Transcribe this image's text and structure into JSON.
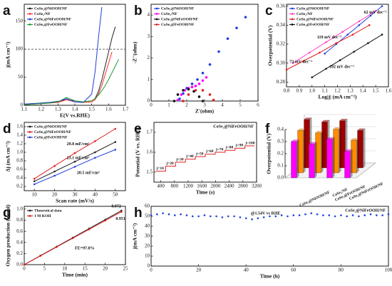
{
  "chart_data": [
    {
      "type": "line",
      "label": "a",
      "xlabel": "E(V vs.RHE)",
      "ylabel": "j(mA cm⁻²)",
      "x": [
        1.1,
        1.15,
        1.2,
        1.25,
        1.3,
        1.35,
        1.4,
        1.45,
        1.5,
        1.52,
        1.54,
        1.56,
        1.58,
        1.6,
        1.62,
        1.64,
        1.66,
        1.7
      ],
      "xlim": [
        1.1,
        1.7
      ],
      "xticks": [
        1.1,
        1.2,
        1.3,
        1.4,
        1.5,
        1.6,
        1.7
      ],
      "ylim": [
        0,
        180
      ],
      "yticks": [
        0,
        50,
        100,
        150
      ],
      "hline": 100,
      "legend": "upper left",
      "series": [
        {
          "name": "CoSe₂@NiOOH/NF",
          "color": "#222222",
          "values": [
            2,
            3,
            4,
            5,
            7,
            10,
            8,
            6,
            8,
            12,
            25,
            45,
            70,
            95,
            120,
            140,
            null,
            null
          ]
        },
        {
          "name": "CoSe₂/NF",
          "color": "#ff3030",
          "values": [
            1,
            2,
            3,
            4,
            5,
            10,
            6,
            5,
            6,
            10,
            20,
            35,
            55,
            75,
            95,
            null,
            null,
            null
          ]
        },
        {
          "name": "CoSe₂@NiFeOOH/NF",
          "color": "#1f3fd6",
          "values": [
            2,
            3,
            4,
            5,
            6,
            12,
            6,
            5,
            20,
            60,
            120,
            175,
            null,
            null,
            null,
            null,
            null,
            null
          ]
        },
        {
          "name": "CoSe₂@FeOOH/NF",
          "color": "#1f9a3a",
          "values": [
            1,
            2,
            3,
            4,
            6,
            14,
            8,
            6,
            8,
            12,
            18,
            26,
            35,
            46,
            58,
            70,
            82,
            null
          ]
        }
      ]
    },
    {
      "type": "scatter",
      "label": "b",
      "xlabel": "Z'(ohm)",
      "ylabel": "-Z''(ohm)",
      "xlim": [
        0,
        6
      ],
      "xticks": [
        0,
        1,
        2,
        3,
        4,
        5,
        6
      ],
      "ylim": [
        0,
        4.5
      ],
      "yticks": [
        0,
        1,
        2,
        3,
        4
      ],
      "legend": "upper left",
      "series": [
        {
          "name": "CoSe₂@NiOOH/NF",
          "color": "#2040e0",
          "x": [
            1.6,
            1.8,
            2.0,
            2.3,
            2.6,
            2.9,
            3.3,
            3.8,
            4.3,
            4.8,
            5.3
          ],
          "values": [
            0.1,
            0.35,
            0.6,
            0.8,
            1.0,
            1.3,
            1.7,
            2.3,
            2.9,
            3.4,
            3.9
          ]
        },
        {
          "name": "CoSe₂/NF",
          "color": "#ff00ff",
          "x": [
            1.5,
            1.7,
            1.9,
            2.1,
            2.3,
            2.5,
            2.7,
            2.9,
            3.1
          ],
          "values": [
            0.05,
            0.3,
            0.5,
            0.6,
            0.65,
            0.7,
            0.8,
            0.95,
            1.1
          ]
        },
        {
          "name": "CoSe₂@NiFeOOH/NF",
          "color": "#111111",
          "x": [
            1.3,
            1.5,
            1.8,
            2.1,
            2.4,
            2.7,
            2.9
          ],
          "values": [
            0,
            0.3,
            0.5,
            0.55,
            0.45,
            0.2,
            0
          ]
        },
        {
          "name": "CoSe₂@FeOOH/NF",
          "color": "#e02020",
          "x": [
            1.8,
            2.1,
            2.5,
            2.9,
            3.3,
            3.5
          ],
          "values": [
            0,
            0.3,
            0.5,
            0.5,
            0.3,
            0.05
          ]
        }
      ]
    },
    {
      "type": "line",
      "label": "c",
      "marker": true,
      "xlabel": "Log|j| (mA cm⁻²)",
      "ylabel": "Overpotential (V)",
      "xlim": [
        0.8,
        1.6
      ],
      "xticks": [
        0.8,
        0.9,
        {
          "value": 1,
          "label": "1.0"
        },
        1.1,
        1.2,
        1.3,
        1.4,
        1.5,
        1.6
      ],
      "ylim": [
        0.275,
        0.362
      ],
      "yticks": [
        0.28,
        {
          "value": 0.3,
          "label": "0.30"
        },
        0.32,
        0.34,
        0.36
      ],
      "legend": "upper left",
      "annotations": [
        "73 mV dec⁻¹",
        "119 mV dec⁻¹",
        "102 mV dec⁻¹",
        "62 mV dec⁻¹"
      ],
      "series": [
        {
          "name": "CoSe₂@NiOOH/NF",
          "color": "#2040e0",
          "x": [
            1.1,
            1.19,
            1.28,
            1.37,
            1.46,
            1.55
          ],
          "values": [
            0.31,
            0.32,
            0.33,
            0.34,
            0.35,
            0.36
          ]
        },
        {
          "name": "CoSe₂/NF",
          "color": "#ff40c0",
          "x": [
            0.85,
            0.98,
            1.11,
            1.24,
            1.37,
            1.5
          ],
          "values": [
            0.3,
            0.311,
            0.322,
            0.333,
            0.344,
            0.355
          ]
        },
        {
          "name": "CoSe₂@NiFeOOH/NF",
          "color": "#e02020",
          "x": [
            0.8,
            0.93,
            1.06,
            1.19,
            1.32,
            1.45
          ],
          "values": [
            0.293,
            0.302,
            0.311,
            0.321,
            0.33,
            0.34
          ]
        },
        {
          "name": "CoSe₂@FeOOH/NF",
          "color": "#111111",
          "x": [
            1.0,
            1.11,
            1.22,
            1.33,
            1.44,
            1.55
          ],
          "values": [
            0.285,
            0.294,
            0.303,
            0.312,
            0.321,
            0.33
          ]
        }
      ]
    },
    {
      "type": "line",
      "label": "d",
      "marker": true,
      "xlabel": "Scan rate (mV/s)",
      "ylabel": "Δj (mA cm⁻²)",
      "x": [
        10,
        20,
        30,
        40,
        50
      ],
      "xlim": [
        5,
        55
      ],
      "xticks": [
        10,
        20,
        30,
        40,
        50
      ],
      "ylim": [
        0.1,
        1.7
      ],
      "yticks": [
        0.2,
        0.4,
        0.6,
        0.8,
        {
          "value": 1,
          "label": "1.0"
        },
        1.2,
        1.4,
        1.6
      ],
      "legend": "upper left",
      "annotations": [
        "29.8 mF/cm²",
        "23.1 mF/cm²",
        "20.5 mF/cm²"
      ],
      "series": [
        {
          "name": "CoSe₂@NiOOH/NF",
          "color": "#222222",
          "values": [
            0.32,
            0.55,
            0.78,
            1.0,
            1.24
          ]
        },
        {
          "name": "CoSe₂@NiFeOOH/NF",
          "color": "#e02020",
          "values": [
            0.38,
            0.68,
            0.98,
            1.26,
            1.55
          ]
        },
        {
          "name": "CoSe₂@FeOOH/NF",
          "color": "#2040e0",
          "values": [
            0.25,
            0.45,
            0.66,
            0.87,
            1.06
          ]
        }
      ]
    },
    {
      "type": "line",
      "label": "e",
      "step": true,
      "title": "CoSe₂@NiFeOOH/NF",
      "xlabel": "Time (s)",
      "ylabel": "Potential (V vs. RHE)",
      "x": [
        250,
        540,
        830,
        1120,
        1410,
        1700,
        1990,
        2280,
        2570,
        2860
      ],
      "xlim": [
        200,
        3200
      ],
      "xticks": [
        400,
        800,
        1200,
        1600,
        2000,
        2400,
        2800,
        3200
      ],
      "ylim": [
        1.45,
        1.75
      ],
      "yticks": [
        1.5,
        1.6,
        1.7
      ],
      "annotations": [
        "j=10",
        "j=20",
        "j=30",
        "j=40",
        "j=50",
        "j=60",
        "j=70",
        "j=80",
        "j=90",
        "j=100"
      ],
      "series": [
        {
          "color": "#e02020",
          "values": [
            1.505,
            1.53,
            1.55,
            1.565,
            1.578,
            1.59,
            1.6,
            1.61,
            1.62,
            1.632
          ]
        }
      ]
    },
    {
      "type": "bar3d",
      "label": "f",
      "ylabel": "Overpotential (V)",
      "categories": [
        "CoSe₂@NiOOH/NF",
        "CoSe₂/NF",
        "CoSe₂@FeOOH/NF",
        "CoSe₂@NiFeOOH/NF"
      ],
      "ylim": [
        0,
        0.4
      ],
      "yticks": [
        {
          "value": 0,
          "label": "0.0"
        },
        0.1,
        0.2,
        0.3,
        0.4
      ],
      "series": [
        {
          "color": "#ff00ff",
          "values": [
            0.3,
            0.28,
            0.32,
            0.22
          ]
        },
        {
          "color": "#ff8c00",
          "values": [
            0.35,
            0.33,
            0.36,
            0.27
          ]
        },
        {
          "color": "#a00000",
          "values": [
            0.4,
            0.38,
            0.39,
            0.31
          ]
        }
      ]
    },
    {
      "type": "line",
      "label": "g",
      "marker": true,
      "xlabel": "Time (min)",
      "ylabel": "Oxygen production (mmol)",
      "x": [
        0,
        4,
        8,
        12,
        16,
        20,
        24
      ],
      "xlim": [
        0,
        25
      ],
      "xticks": [
        0,
        5,
        10,
        15,
        20,
        25
      ],
      "ylim": [
        0,
        1.05
      ],
      "yticks": [
        {
          "value": 0,
          "label": "0.0"
        },
        0.2,
        0.4,
        0.6,
        0.8,
        {
          "value": 1,
          "label": "1.0"
        }
      ],
      "legend": "upper left",
      "annotations": [
        "FE=97.8%"
      ],
      "series": [
        {
          "name": "Theoretical data",
          "color": "#222222",
          "values": [
            0,
            0.162,
            0.324,
            0.486,
            0.648,
            0.81,
            0.972
          ],
          "value_labels": [
            null,
            null,
            null,
            null,
            null,
            null,
            "0.972"
          ]
        },
        {
          "name": "1 M KOH",
          "color": "#e02020",
          "values": [
            0,
            0.158,
            0.317,
            0.476,
            0.634,
            0.793,
            0.951
          ],
          "value_labels": [
            null,
            null,
            null,
            null,
            null,
            null,
            "0.951"
          ]
        }
      ]
    },
    {
      "type": "scatter",
      "label": "h",
      "title": "CoSe₂@NiFeOOH/NF",
      "xlabel": "Time (h)",
      "ylabel": "j(mA cm⁻²)",
      "x": [
        0,
        2.5,
        5,
        7.5,
        10,
        12.5,
        15,
        17.5,
        20,
        22.5,
        25,
        27.5,
        30,
        32.5,
        35,
        37.5,
        40,
        42.5,
        45,
        47.5,
        50,
        52.5,
        55,
        57.5,
        60,
        62.5,
        65,
        67.5,
        70,
        72.5,
        75,
        77.5,
        80,
        82.5,
        85,
        87.5,
        90,
        92.5,
        95,
        97.5,
        100
      ],
      "xlim": [
        0,
        100
      ],
      "xticks": [
        0,
        20,
        40,
        60,
        80,
        100
      ],
      "ylim": [
        0,
        60
      ],
      "yticks": [
        0,
        10,
        20,
        30,
        40,
        50,
        60
      ],
      "annotations": [
        "@1.54V vs RHE"
      ],
      "series": [
        {
          "color": "#2040e0",
          "values": [
            51,
            52,
            53,
            52,
            51,
            52,
            51,
            50,
            50,
            51,
            50,
            50,
            49,
            50,
            50,
            49,
            48,
            47,
            48,
            49,
            50,
            50,
            51,
            50,
            51,
            51,
            52,
            53,
            52,
            51,
            51,
            50,
            51,
            50,
            51,
            50,
            51,
            52,
            51,
            51,
            52
          ]
        }
      ]
    }
  ]
}
